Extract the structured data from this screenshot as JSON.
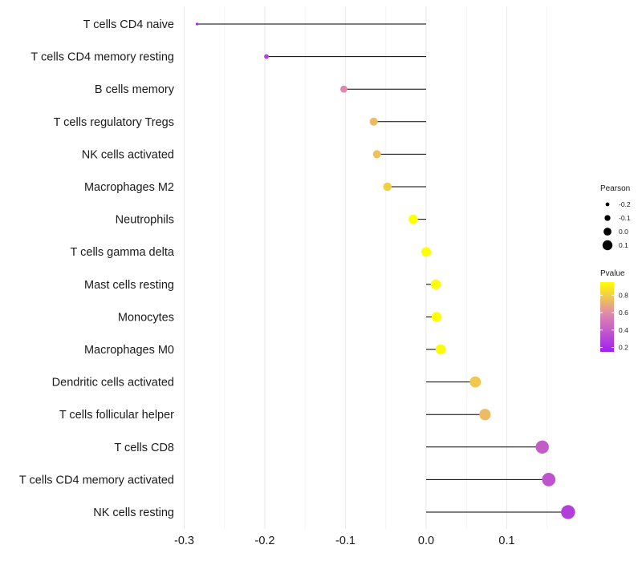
{
  "chart_data": {
    "type": "lollipop",
    "title": "",
    "xlabel": "",
    "ylabel": "",
    "xlim": [
      -0.3,
      0.18
    ],
    "x_ticks": [
      -0.3,
      -0.2,
      -0.1,
      0.0,
      0.1
    ],
    "x_tick_labels": [
      "-0.3",
      "-0.2",
      "-0.1",
      "0.0",
      "0.1"
    ],
    "grid": true,
    "categories": [
      "T cells CD4 naive",
      "T cells CD4 memory resting",
      "B cells memory",
      "T cells regulatory  Tregs ",
      "NK cells activated",
      "Macrophages M2",
      "Neutrophils",
      "T cells gamma delta",
      "Mast cells resting",
      "Monocytes",
      "Macrophages M0",
      "Dendritic cells activated",
      "T cells follicular helper",
      "T cells CD8",
      "T cells CD4 memory activated",
      "NK cells resting"
    ],
    "pearson": [
      -0.284,
      -0.198,
      -0.102,
      -0.065,
      -0.061,
      -0.048,
      -0.016,
      0.0,
      0.012,
      0.013,
      0.018,
      0.061,
      0.073,
      0.144,
      0.152,
      0.176
    ],
    "pvalue": [
      0.16,
      0.3,
      0.58,
      0.74,
      0.76,
      0.8,
      0.96,
      1.0,
      0.96,
      0.96,
      0.94,
      0.78,
      0.74,
      0.4,
      0.36,
      0.28
    ],
    "legend": {
      "size_title": "Pearson",
      "size_labels": [
        "-0.2",
        "-0.1",
        "0.0",
        "0.1"
      ],
      "size_values": [
        -0.2,
        -0.1,
        0.0,
        0.1
      ],
      "color_title": "Pvalue",
      "color_labels": [
        "0.8",
        "0.6",
        "0.4",
        "0.2"
      ],
      "color_values": [
        0.8,
        0.6,
        0.4,
        0.2
      ],
      "color_range": [
        0.15,
        0.95
      ],
      "color_low": "#a020f0",
      "color_mid": "#e08aaa",
      "color_high": "#ffff00",
      "placement": "right"
    }
  }
}
